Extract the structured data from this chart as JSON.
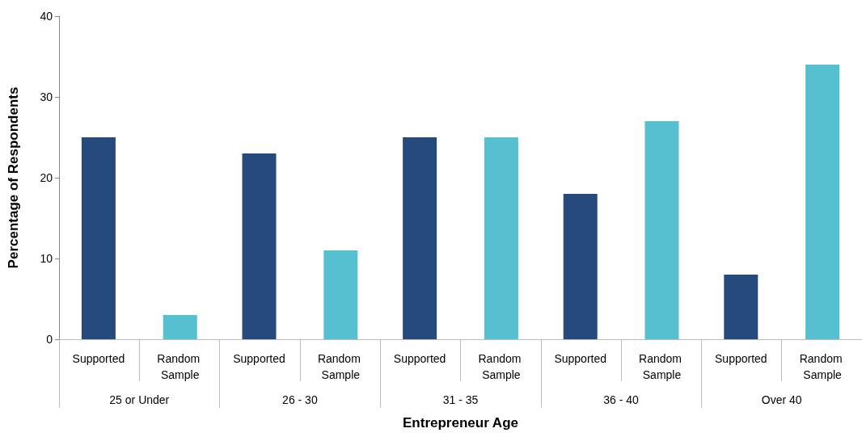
{
  "chart_data": {
    "type": "bar",
    "xlabel": "Entrepreneur Age",
    "ylabel": "Percentage of Respondents",
    "categories": [
      "25 or Under",
      "26 - 30",
      "31 - 35",
      "36 - 40",
      "Over 40"
    ],
    "series": [
      {
        "name": "Supported",
        "color": "#264a7c",
        "values": [
          25,
          23,
          25,
          18,
          8
        ]
      },
      {
        "name": "Random Sample",
        "color": "#57c0d0",
        "values": [
          3,
          11,
          25,
          27,
          34
        ]
      }
    ],
    "ylim": [
      0,
      40
    ],
    "yticks": [
      0,
      10,
      20,
      30,
      40
    ],
    "grid": false,
    "legend": false
  }
}
